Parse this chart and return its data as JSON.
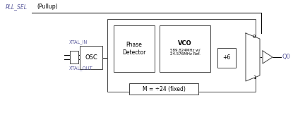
{
  "bg_color": "#ffffff",
  "text_color": "#000000",
  "signal_color": "#6060a0",
  "box_edge": "#444444",
  "fig_w": 4.32,
  "fig_h": 1.63,
  "dpi": 100,
  "pll_sel_label": "PLL_SEL",
  "pullup_label": "(Pullup)",
  "xtal_in_label": "XTAL_IN",
  "xtal_out_label": "XTAL_OUT",
  "osc_label": "OSC",
  "phase_det_label": "Phase\nDetector",
  "vco_label": "VCO",
  "vco_sublabel": "589.824MHz w/\n24.576MHz Ref.",
  "div6_label": "+6",
  "mux_0_label": "0",
  "mux_1_label": "1",
  "m_label": "M = ÷24 (fixed)",
  "q0_label": "Q0"
}
